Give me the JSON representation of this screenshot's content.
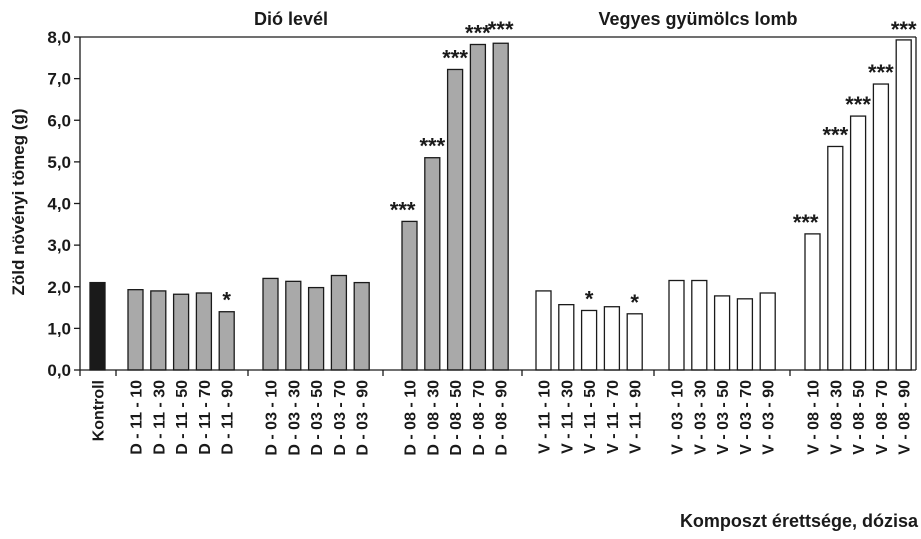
{
  "chart_data": {
    "type": "bar",
    "title": "",
    "xlabel": "Komposzt érettsége, dózisa",
    "ylabel": "Zöld növényi tömeg (g)",
    "ylim": [
      0,
      8
    ],
    "yticks": [
      "0,0",
      "1,0",
      "2,0",
      "3,0",
      "4,0",
      "5,0",
      "6,0",
      "7,0",
      "8,0"
    ],
    "group_labels": [
      "Dió levél",
      "Vegyes gyümölcs lomb"
    ],
    "grid": false,
    "colors": {
      "kontroll": "#1a1a1a",
      "dio": "#a9a9a9",
      "vegyes": "#ffffff",
      "outline": "#1a1a1a"
    },
    "categories": [
      "Kontroll",
      "D - 11 - 10",
      "D - 11 - 30",
      "D - 11 - 50",
      "D - 11 - 70",
      "D - 11 - 90",
      "D - 03 - 10",
      "D - 03 - 30",
      "D - 03 - 50",
      "D - 03 - 70",
      "D - 03 - 90",
      "D - 08 - 10",
      "D - 08 - 30",
      "D - 08 - 50",
      "D - 08 - 70",
      "D - 08 - 90",
      "V - 11 - 10",
      "V - 11 - 30",
      "V - 11 - 50",
      "V - 11 - 70",
      "V - 11 - 90",
      "V - 03 - 10",
      "V - 03 - 30",
      "V - 03 - 50",
      "V - 03 - 70",
      "V - 03 - 90",
      "V - 08 - 10",
      "V - 08 - 30",
      "V - 08 - 50",
      "V - 08 - 70",
      "V - 08 - 90"
    ],
    "values": [
      2.1,
      1.93,
      1.9,
      1.82,
      1.85,
      1.4,
      2.2,
      2.13,
      1.98,
      2.27,
      2.1,
      3.57,
      5.1,
      7.22,
      7.82,
      7.85,
      1.9,
      1.57,
      1.43,
      1.52,
      1.35,
      2.15,
      2.15,
      1.78,
      1.71,
      1.85,
      3.27,
      5.37,
      6.1,
      6.87,
      7.93
    ],
    "fill_group": [
      "kontroll",
      "dio",
      "dio",
      "dio",
      "dio",
      "dio",
      "dio",
      "dio",
      "dio",
      "dio",
      "dio",
      "dio",
      "dio",
      "dio",
      "dio",
      "dio",
      "vegyes",
      "vegyes",
      "vegyes",
      "vegyes",
      "vegyes",
      "vegyes",
      "vegyes",
      "vegyes",
      "vegyes",
      "vegyes",
      "vegyes",
      "vegyes",
      "vegyes",
      "vegyes",
      "vegyes"
    ],
    "significance": [
      "",
      "",
      "",
      "",
      "",
      "*",
      "",
      "",
      "",
      "",
      "",
      "***",
      "***",
      "***",
      "***",
      "***",
      "",
      "",
      "*",
      "",
      "*",
      "",
      "",
      "",
      "",
      "",
      "***",
      "***",
      "***",
      "***",
      "***"
    ]
  }
}
